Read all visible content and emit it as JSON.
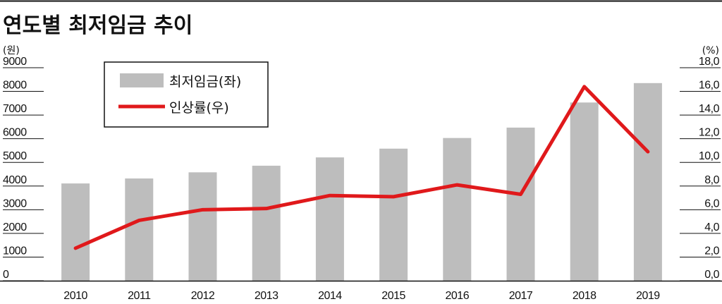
{
  "chart_data": {
    "type": "bar",
    "title": "연도별 최저임금 추이",
    "left_unit": "(원)",
    "right_unit": "(%)",
    "categories": [
      "2010",
      "2011",
      "2012",
      "2013",
      "2014",
      "2015",
      "2016",
      "2017",
      "2018",
      "2019"
    ],
    "series": [
      {
        "name": "최저임금(좌)",
        "type": "bar",
        "axis": "left",
        "color": "#bdbdbd",
        "values": [
          4110,
          4320,
          4580,
          4860,
          5210,
          5580,
          6030,
          6470,
          7530,
          8350
        ]
      },
      {
        "name": "인상률(우)",
        "type": "line",
        "axis": "right",
        "color": "#e0191b",
        "values": [
          2.75,
          5.1,
          6.0,
          6.1,
          7.2,
          7.1,
          8.1,
          7.3,
          16.4,
          10.9
        ]
      }
    ],
    "y_left": {
      "lim": [
        0,
        9000
      ],
      "ticks": [
        "0",
        "1000",
        "2000",
        "3000",
        "4000",
        "5000",
        "6000",
        "7000",
        "8000",
        "9000"
      ]
    },
    "y_right": {
      "lim": [
        0,
        18
      ],
      "ticks": [
        "0,0",
        "2,0",
        "4,0",
        "6,0",
        "8,0",
        "10,0",
        "12,0",
        "14,0",
        "16,0",
        "18,0"
      ]
    },
    "grid": false,
    "legend": "top-left"
  }
}
